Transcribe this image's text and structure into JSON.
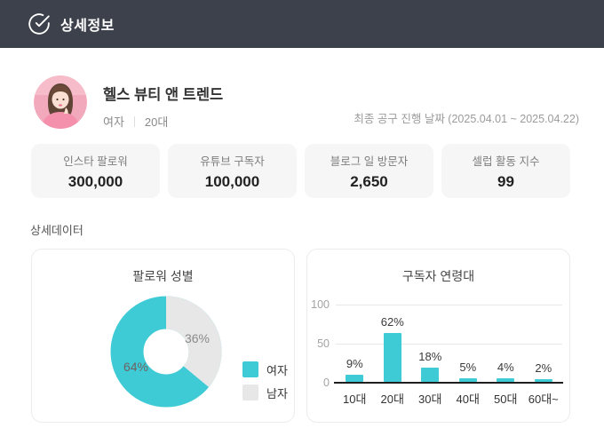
{
  "header": {
    "title": "상세정보"
  },
  "profile": {
    "name": "헬스 뷰티 앤 트렌드",
    "gender": "여자",
    "age_group": "20대",
    "campaign_date": "최종 공구 진행 날짜 (2025.04.01 ~ 2025.04.22)"
  },
  "stats": [
    {
      "label": "인스타 팔로워",
      "value": "300,000"
    },
    {
      "label": "유튜브 구독자",
      "value": "100,000"
    },
    {
      "label": "블로그 일 방문자",
      "value": "2,650"
    },
    {
      "label": "셀럽 활동 지수",
      "value": "99"
    }
  ],
  "section_title": "상세데이터",
  "colors": {
    "accent": "#3ECBD5",
    "muted": "#E7E7E7",
    "header_bg": "#3C414B"
  },
  "chart_data": [
    {
      "type": "pie",
      "donut": true,
      "title": "팔로워 성별",
      "labels": [
        "여자",
        "남자"
      ],
      "values": [
        64,
        36
      ],
      "value_labels": [
        "64%",
        "36%"
      ],
      "colors": [
        "#3ECBD5",
        "#E7E7E7"
      ],
      "legend_position": "right"
    },
    {
      "type": "bar",
      "title": "구독자 연령대",
      "categories": [
        "10대",
        "20대",
        "30대",
        "40대",
        "50대",
        "60대~"
      ],
      "values": [
        9,
        62,
        18,
        5,
        4,
        2
      ],
      "value_labels": [
        "9%",
        "62%",
        "18%",
        "5%",
        "4%",
        "2%"
      ],
      "bar_color": "#3ECBD5",
      "ylim": [
        0,
        100
      ],
      "yticks": [
        0,
        50,
        100
      ],
      "grid": true,
      "xlabel": "",
      "ylabel": ""
    }
  ]
}
